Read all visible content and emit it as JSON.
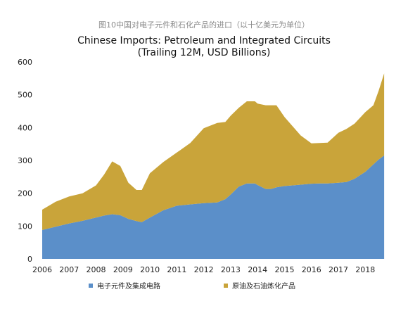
{
  "caption": "图10中国对电子元件和石化产品的进口（以十亿美元为单位）",
  "colors": {
    "electronics": "#5b8fc9",
    "petroleum": "#c9a43a"
  },
  "chart_data": {
    "type": "area",
    "stacked": true,
    "title": "Chinese Imports: Petroleum and Integrated Circuits",
    "subtitle": "(Trailing 12M, USD Billions)",
    "xlabel": "",
    "ylabel": "",
    "xlim": [
      2006.0,
      2018.75
    ],
    "ylim": [
      0,
      600
    ],
    "yticks": [
      0,
      100,
      200,
      300,
      400,
      500,
      600
    ],
    "xticks": [
      2006,
      2007,
      2008,
      2009,
      2010,
      2011,
      2012,
      2013,
      2014,
      2015,
      2016,
      2017,
      2018
    ],
    "grid": false,
    "legend_position": "bottom",
    "x": [
      2006.0,
      2006.5,
      2007.0,
      2007.5,
      2008.0,
      2008.3,
      2008.6,
      2008.9,
      2009.2,
      2009.5,
      2009.7,
      2010.0,
      2010.5,
      2011.0,
      2011.5,
      2012.0,
      2012.5,
      2012.8,
      2013.0,
      2013.3,
      2013.6,
      2013.9,
      2014.0,
      2014.3,
      2014.5,
      2014.7,
      2015.0,
      2015.3,
      2015.6,
      2016.0,
      2016.3,
      2016.6,
      2017.0,
      2017.3,
      2017.6,
      2018.0,
      2018.3,
      2018.5,
      2018.7
    ],
    "series": [
      {
        "name": "电子元件及集成电路",
        "values": [
          88,
          98,
          108,
          116,
          126,
          132,
          136,
          133,
          122,
          115,
          112,
          126,
          148,
          162,
          166,
          170,
          172,
          182,
          196,
          220,
          230,
          230,
          225,
          213,
          213,
          218,
          222,
          224,
          226,
          229,
          230,
          230,
          232,
          234,
          244,
          265,
          288,
          303,
          315
        ]
      },
      {
        "name": "原油及石油炼化产品",
        "values": [
          62,
          76,
          82,
          84,
          98,
          125,
          161,
          150,
          110,
          95,
          98,
          135,
          147,
          162,
          187,
          228,
          242,
          235,
          240,
          240,
          250,
          250,
          248,
          255,
          255,
          250,
          210,
          180,
          150,
          123,
          123,
          124,
          152,
          162,
          168,
          182,
          180,
          210,
          250
        ]
      }
    ]
  }
}
